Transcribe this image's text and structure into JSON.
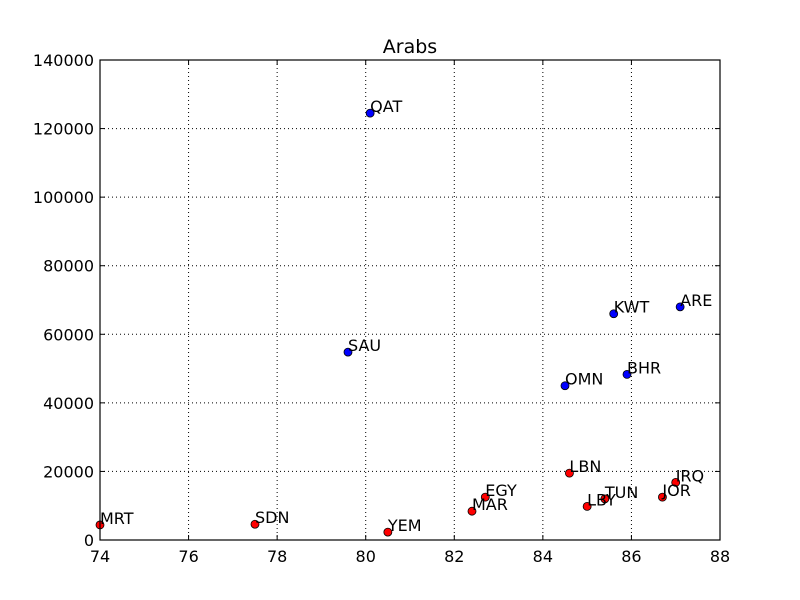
{
  "chart_data": {
    "type": "scatter",
    "title": "Arabs",
    "xlabel": "",
    "ylabel": "",
    "xlim": [
      74,
      88
    ],
    "ylim": [
      0,
      140000
    ],
    "x_ticks": [
      "74",
      "76",
      "78",
      "80",
      "82",
      "84",
      "86",
      "88"
    ],
    "y_ticks": [
      "0",
      "20000",
      "40000",
      "60000",
      "80000",
      "100000",
      "120000",
      "140000"
    ],
    "grid": true,
    "series": [
      {
        "color": "#0000ff",
        "points": [
          {
            "label": "QAT",
            "x": 80.1,
            "y": 124500
          },
          {
            "label": "ARE",
            "x": 87.1,
            "y": 68000
          },
          {
            "label": "KWT",
            "x": 85.6,
            "y": 66000
          },
          {
            "label": "SAU",
            "x": 79.6,
            "y": 54800
          },
          {
            "label": "BHR",
            "x": 85.9,
            "y": 48300
          },
          {
            "label": "OMN",
            "x": 84.5,
            "y": 45000
          }
        ]
      },
      {
        "color": "#ff0000",
        "points": [
          {
            "label": "LBN",
            "x": 84.6,
            "y": 19500
          },
          {
            "label": "IRQ",
            "x": 87.0,
            "y": 16800
          },
          {
            "label": "JOR",
            "x": 86.7,
            "y": 12500
          },
          {
            "label": "TUN",
            "x": 85.4,
            "y": 12000
          },
          {
            "label": "EGY",
            "x": 82.7,
            "y": 12500
          },
          {
            "label": "LBY",
            "x": 85.0,
            "y": 9800
          },
          {
            "label": "MAR",
            "x": 82.4,
            "y": 8400
          },
          {
            "label": "SDN",
            "x": 77.5,
            "y": 4600
          },
          {
            "label": "MRT",
            "x": 74.0,
            "y": 4400
          },
          {
            "label": "YEM",
            "x": 80.5,
            "y": 2300
          }
        ]
      }
    ]
  }
}
